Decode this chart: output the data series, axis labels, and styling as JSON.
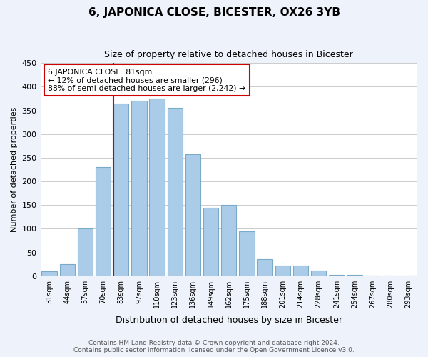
{
  "title": "6, JAPONICA CLOSE, BICESTER, OX26 3YB",
  "subtitle": "Size of property relative to detached houses in Bicester",
  "xlabel": "Distribution of detached houses by size in Bicester",
  "ylabel": "Number of detached properties",
  "categories": [
    "31sqm",
    "44sqm",
    "57sqm",
    "70sqm",
    "83sqm",
    "97sqm",
    "110sqm",
    "123sqm",
    "136sqm",
    "149sqm",
    "162sqm",
    "175sqm",
    "188sqm",
    "201sqm",
    "214sqm",
    "228sqm",
    "241sqm",
    "254sqm",
    "267sqm",
    "280sqm",
    "293sqm"
  ],
  "values": [
    10,
    25,
    100,
    230,
    365,
    370,
    375,
    355,
    258,
    145,
    150,
    95,
    35,
    22,
    22,
    11,
    3,
    2,
    1,
    1,
    1
  ],
  "bar_color": "#aacce8",
  "bar_edge_color": "#7aaac8",
  "highlight_index": 4,
  "highlight_color": "#cc0000",
  "annotation_title": "6 JAPONICA CLOSE: 81sqm",
  "annotation_line1": "← 12% of detached houses are smaller (296)",
  "annotation_line2": "88% of semi-detached houses are larger (2,242) →",
  "annotation_box_color": "#ffffff",
  "annotation_box_edge_color": "#cc0000",
  "ylim": [
    0,
    450
  ],
  "yticks": [
    0,
    50,
    100,
    150,
    200,
    250,
    300,
    350,
    400,
    450
  ],
  "footer_line1": "Contains HM Land Registry data © Crown copyright and database right 2024.",
  "footer_line2": "Contains public sector information licensed under the Open Government Licence v3.0.",
  "bg_color": "#eef2fb",
  "plot_bg_color": "#ffffff"
}
